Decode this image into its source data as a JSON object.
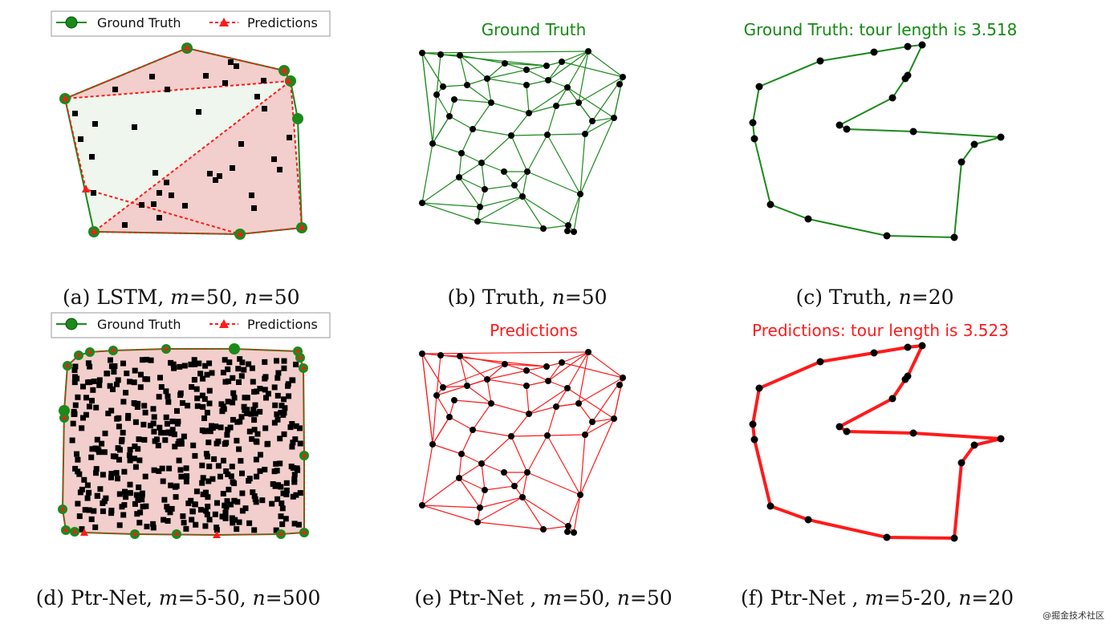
{
  "colors": {
    "green": "#1a8a1a",
    "red": "#ff1a1a",
    "hull_fill_red": "#f2cfcc",
    "hull_fill_green": "#eef6ee",
    "point": "#000000"
  },
  "legend": {
    "ground_truth_label": "Ground Truth",
    "predictions_label": "Predictions"
  },
  "panels": {
    "a": {
      "caption_prefix": "(a) LSTM, ",
      "m_var": "m",
      "m_val": "=50, ",
      "n_var": "n",
      "n_val": "=50"
    },
    "b": {
      "title": "Ground Truth",
      "caption_prefix": "(b) Truth, ",
      "n_var": "n",
      "n_val": "=50"
    },
    "c": {
      "title": "Ground Truth: tour length is 3.518",
      "caption_prefix": "(c) Truth, ",
      "n_var": "n",
      "n_val": "=20"
    },
    "d": {
      "caption_prefix": "(d) Ptr-Net, ",
      "m_var": "m",
      "m_val": "=5-50, ",
      "n_var": "n",
      "n_val": "=500"
    },
    "e": {
      "title": "Predictions",
      "caption_prefix": "(e) Ptr-Net , ",
      "m_var": "m",
      "m_val": "=50, ",
      "n_var": "n",
      "n_val": "=50"
    },
    "f": {
      "title": "Predictions: tour length is 3.523",
      "caption_prefix": "(f) Ptr-Net , ",
      "m_var": "m",
      "m_val": "=5-20, ",
      "n_var": "n",
      "n_val": "=20"
    }
  },
  "watermark": "@掘金技术社区"
}
